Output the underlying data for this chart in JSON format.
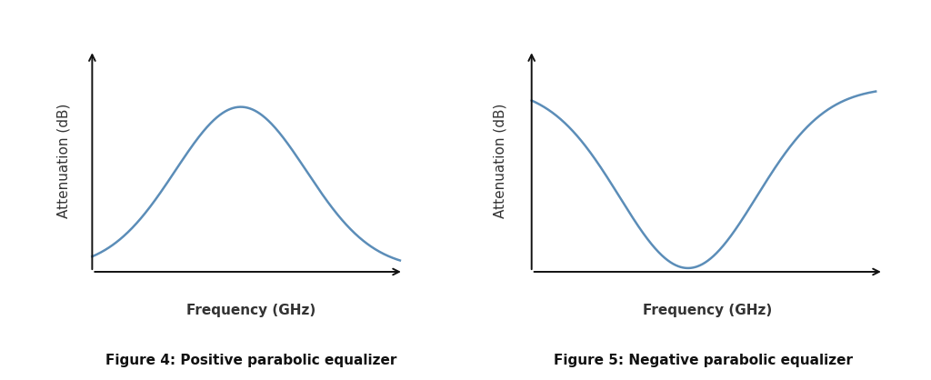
{
  "fig1_title": "Figure 4: Positive parabolic equalizer",
  "fig2_title": "Figure 5: Negative parabolic equalizer",
  "xlabel": "Frequency (GHz)",
  "ylabel": "Attenuation (dB)",
  "curve_color": "#5b8db8",
  "curve_linewidth": 1.8,
  "axis_color": "#111111",
  "label_color": "#333333",
  "label_fontsize": 11,
  "caption_fontsize": 11,
  "bg_color": "#ffffff"
}
